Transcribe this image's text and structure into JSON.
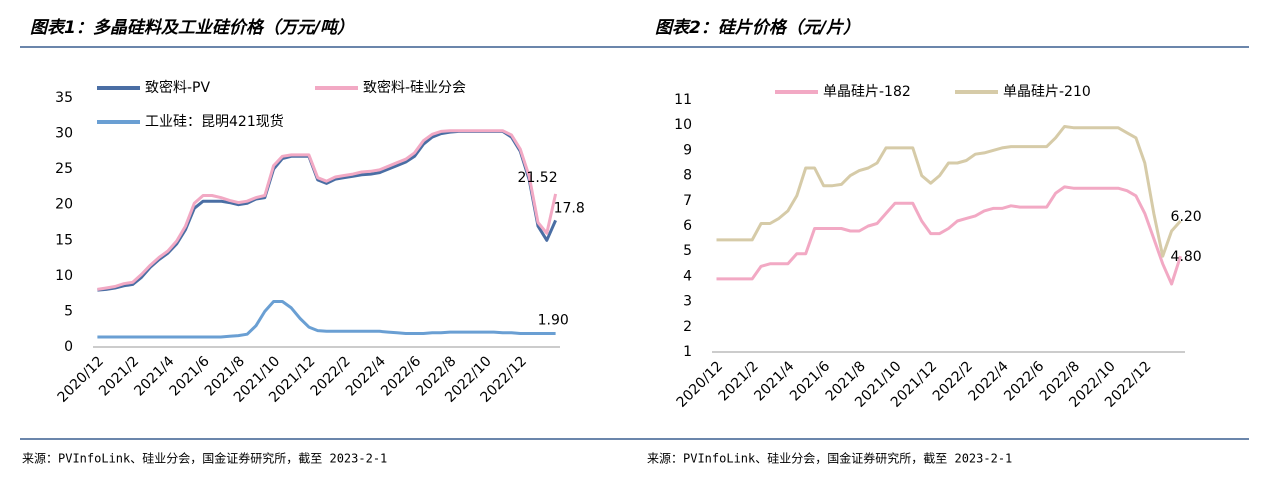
{
  "chart_data": [
    {
      "type": "line",
      "title": "图表1：多晶硅料及工业硅价格（万元/吨）",
      "source": "来源：PVInfoLink、硅业分会，国金证券研究所，截至 2023-2-1",
      "categories": [
        "2020/12",
        null,
        null,
        null,
        "2021/2",
        null,
        null,
        null,
        "2021/4",
        null,
        null,
        null,
        "2021/6",
        null,
        null,
        null,
        "2021/8",
        null,
        null,
        null,
        "2021/10",
        null,
        null,
        null,
        "2021/12",
        null,
        null,
        null,
        "2022/2",
        null,
        null,
        null,
        "2022/4",
        null,
        null,
        null,
        "2022/6",
        null,
        null,
        null,
        "2022/8",
        null,
        null,
        null,
        "2022/10",
        null,
        null,
        null,
        "2022/12",
        null,
        null,
        null,
        null
      ],
      "ylim": [
        0,
        35
      ],
      "yticks": [
        0,
        5,
        10,
        15,
        20,
        25,
        30,
        35
      ],
      "grid": false,
      "legend": "top-left",
      "series": [
        {
          "name": "致密料-PV",
          "color": "#4a6ea4",
          "values": [
            8.0,
            8.1,
            8.3,
            8.6,
            8.8,
            9.8,
            11.2,
            12.3,
            13.2,
            14.5,
            16.5,
            19.5,
            20.5,
            20.5,
            20.5,
            20.3,
            20.0,
            20.2,
            20.8,
            21.0,
            25.0,
            26.5,
            26.8,
            26.8,
            26.8,
            23.5,
            23.0,
            23.6,
            23.8,
            24.0,
            24.2,
            24.3,
            24.5,
            25.0,
            25.5,
            26.0,
            26.8,
            28.5,
            29.5,
            30.0,
            30.2,
            30.3,
            30.3,
            30.3,
            30.3,
            30.3,
            30.3,
            29.5,
            27.5,
            23.5,
            17.0,
            15.0,
            17.8
          ],
          "value_labels": [
            null,
            null,
            null,
            null,
            null,
            null,
            null,
            null,
            null,
            null,
            null,
            null,
            null,
            null,
            null,
            null,
            null,
            null,
            null,
            null,
            null,
            null,
            null,
            null,
            null,
            null,
            null,
            null,
            null,
            null,
            null,
            null,
            null,
            null,
            null,
            null,
            null,
            null,
            null,
            null,
            null,
            null,
            null,
            null,
            null,
            null,
            null,
            null,
            null,
            null,
            null,
            null,
            "17.8"
          ]
        },
        {
          "name": "致密料-硅业分会",
          "color": "#f2a9c4",
          "values": [
            8.1,
            8.3,
            8.5,
            8.9,
            9.1,
            10.2,
            11.5,
            12.6,
            13.5,
            14.9,
            17.0,
            20.2,
            21.3,
            21.3,
            21.0,
            20.6,
            20.3,
            20.5,
            21.0,
            21.3,
            25.5,
            26.8,
            27.0,
            27.0,
            27.0,
            23.8,
            23.3,
            23.9,
            24.1,
            24.3,
            24.6,
            24.7,
            24.9,
            25.4,
            25.9,
            26.4,
            27.3,
            29.0,
            29.9,
            30.3,
            30.4,
            30.4,
            30.4,
            30.4,
            30.4,
            30.4,
            30.4,
            29.8,
            27.8,
            24.0,
            17.5,
            16.0,
            21.52
          ],
          "value_labels": [
            null,
            null,
            null,
            null,
            null,
            null,
            null,
            null,
            null,
            null,
            null,
            null,
            null,
            null,
            null,
            null,
            null,
            null,
            null,
            null,
            null,
            null,
            null,
            null,
            null,
            null,
            null,
            null,
            null,
            null,
            null,
            null,
            null,
            null,
            null,
            null,
            null,
            null,
            null,
            null,
            null,
            null,
            null,
            null,
            null,
            null,
            null,
            null,
            null,
            null,
            null,
            null,
            "21.52"
          ]
        },
        {
          "name": "工业硅：昆明421现货",
          "color": "#6a9fd3",
          "values": [
            1.4,
            1.4,
            1.4,
            1.4,
            1.4,
            1.4,
            1.4,
            1.4,
            1.4,
            1.4,
            1.4,
            1.4,
            1.4,
            1.4,
            1.4,
            1.5,
            1.6,
            1.8,
            3.0,
            5.0,
            6.4,
            6.4,
            5.5,
            4.0,
            2.8,
            2.3,
            2.2,
            2.2,
            2.2,
            2.2,
            2.2,
            2.2,
            2.2,
            2.1,
            2.0,
            1.9,
            1.9,
            1.9,
            2.0,
            2.0,
            2.1,
            2.1,
            2.1,
            2.1,
            2.1,
            2.1,
            2.0,
            2.0,
            1.9,
            1.9,
            1.9,
            1.9,
            1.9
          ],
          "value_labels": [
            null,
            null,
            null,
            null,
            null,
            null,
            null,
            null,
            null,
            null,
            null,
            null,
            null,
            null,
            null,
            null,
            null,
            null,
            null,
            null,
            null,
            null,
            null,
            null,
            null,
            null,
            null,
            null,
            null,
            null,
            null,
            null,
            null,
            null,
            null,
            null,
            null,
            null,
            null,
            null,
            null,
            null,
            null,
            null,
            null,
            null,
            null,
            null,
            null,
            null,
            null,
            null,
            "1.90"
          ]
        }
      ]
    },
    {
      "type": "line",
      "title": "图表2：硅片价格（元/片）",
      "source": "来源：PVInfoLink、硅业分会，国金证券研究所，截至 2023-2-1",
      "categories": [
        "2020/12",
        null,
        null,
        null,
        "2021/2",
        null,
        null,
        null,
        "2021/4",
        null,
        null,
        null,
        "2021/6",
        null,
        null,
        null,
        "2021/8",
        null,
        null,
        null,
        "2021/10",
        null,
        null,
        null,
        "2021/12",
        null,
        null,
        null,
        "2022/2",
        null,
        null,
        null,
        "2022/4",
        null,
        null,
        null,
        "2022/6",
        null,
        null,
        null,
        "2022/8",
        null,
        null,
        null,
        "2022/10",
        null,
        null,
        null,
        "2022/12",
        null,
        null,
        null,
        null
      ],
      "ylim": [
        1,
        11
      ],
      "yticks": [
        1,
        2,
        3,
        4,
        5,
        6,
        7,
        8,
        9,
        10,
        11
      ],
      "grid": false,
      "legend": "top",
      "series": [
        {
          "name": "单晶硅片-182",
          "color": "#f2a9c4",
          "values": [
            3.9,
            3.9,
            3.9,
            3.9,
            3.9,
            4.4,
            4.5,
            4.5,
            4.5,
            4.9,
            4.9,
            5.9,
            5.9,
            5.9,
            5.9,
            5.8,
            5.8,
            6.0,
            6.1,
            6.5,
            6.9,
            6.9,
            6.9,
            6.2,
            5.7,
            5.7,
            5.9,
            6.2,
            6.3,
            6.4,
            6.6,
            6.7,
            6.7,
            6.8,
            6.75,
            6.75,
            6.75,
            6.75,
            7.3,
            7.55,
            7.5,
            7.5,
            7.5,
            7.5,
            7.5,
            7.5,
            7.4,
            7.2,
            6.5,
            5.5,
            4.5,
            3.7,
            4.8
          ],
          "value_labels": [
            null,
            null,
            null,
            null,
            null,
            null,
            null,
            null,
            null,
            null,
            null,
            null,
            null,
            null,
            null,
            null,
            null,
            null,
            null,
            null,
            null,
            null,
            null,
            null,
            null,
            null,
            null,
            null,
            null,
            null,
            null,
            null,
            null,
            null,
            null,
            null,
            null,
            null,
            null,
            null,
            null,
            null,
            null,
            null,
            null,
            null,
            null,
            null,
            null,
            null,
            null,
            null,
            "4.80"
          ]
        },
        {
          "name": "单晶硅片-210",
          "color": "#d6cba8",
          "values": [
            5.45,
            5.45,
            5.45,
            5.45,
            5.45,
            6.1,
            6.1,
            6.3,
            6.6,
            7.2,
            8.3,
            8.3,
            7.6,
            7.6,
            7.65,
            8.0,
            8.2,
            8.3,
            8.5,
            9.1,
            9.1,
            9.1,
            9.1,
            8.0,
            7.7,
            8.0,
            8.5,
            8.5,
            8.6,
            8.85,
            8.9,
            9.0,
            9.1,
            9.15,
            9.15,
            9.15,
            9.15,
            9.15,
            9.5,
            9.95,
            9.9,
            9.9,
            9.9,
            9.9,
            9.9,
            9.9,
            9.7,
            9.5,
            8.5,
            6.5,
            4.8,
            5.8,
            6.2
          ],
          "value_labels": [
            null,
            null,
            null,
            null,
            null,
            null,
            null,
            null,
            null,
            null,
            null,
            null,
            null,
            null,
            null,
            null,
            null,
            null,
            null,
            null,
            null,
            null,
            null,
            null,
            null,
            null,
            null,
            null,
            null,
            null,
            null,
            null,
            null,
            null,
            null,
            null,
            null,
            null,
            null,
            null,
            null,
            null,
            null,
            null,
            null,
            null,
            null,
            null,
            null,
            null,
            null,
            null,
            "6.20"
          ]
        }
      ]
    }
  ]
}
